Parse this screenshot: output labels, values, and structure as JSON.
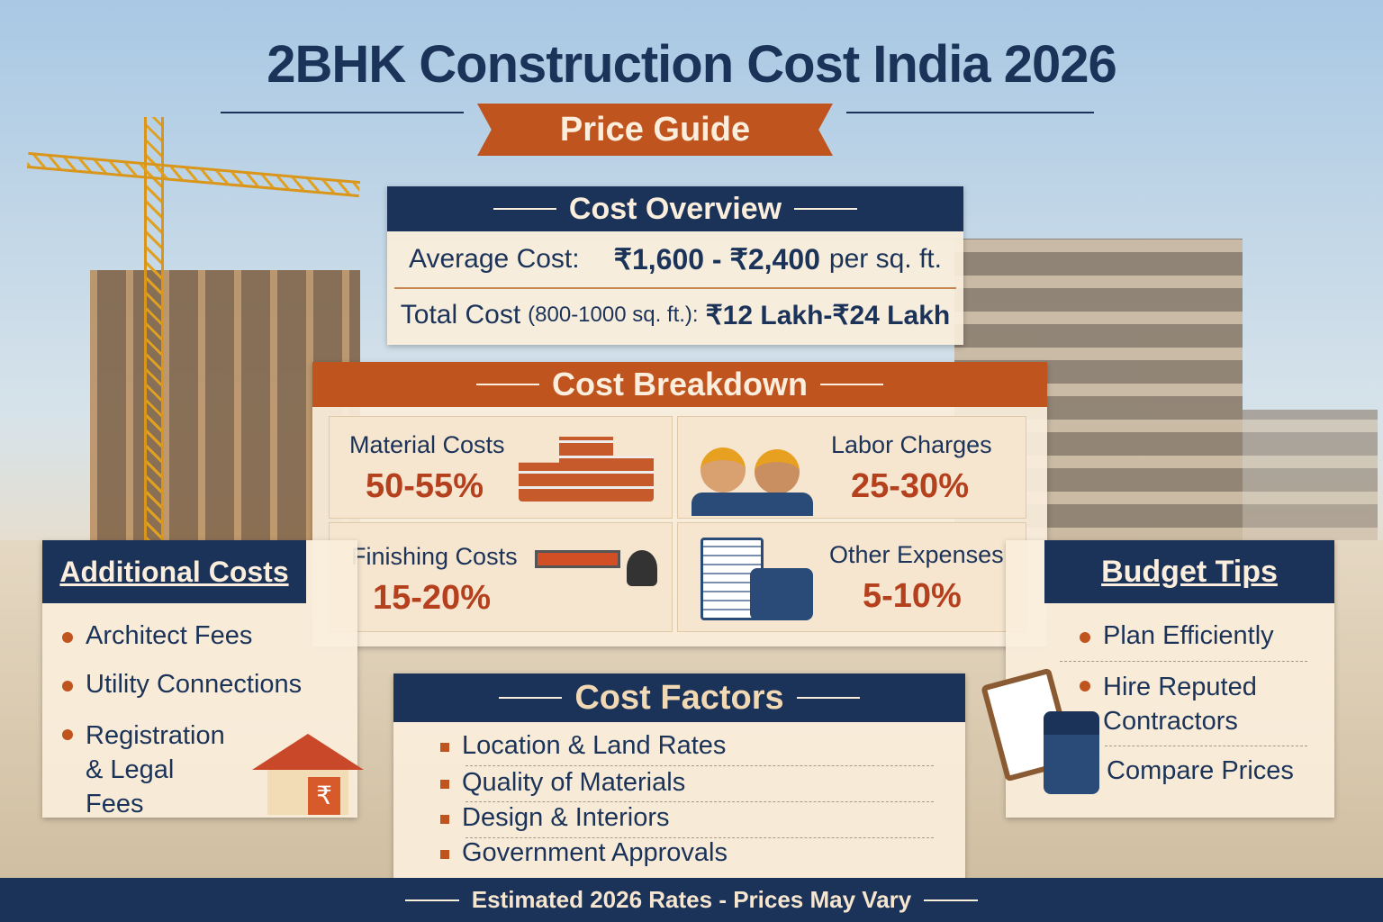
{
  "title": "2BHK Construction Cost India 2026",
  "subtitle": "Price Guide",
  "overview": {
    "header": "Cost Overview",
    "avg_label": "Average Cost:",
    "avg_value": "₹1,600 - ₹2,400",
    "avg_unit": "per sq. ft.",
    "total_label": "Total Cost",
    "total_range": "(800-1000 sq. ft.):",
    "total_value": "₹12 Lakh-₹24 Lakh"
  },
  "breakdown": {
    "header": "Cost Breakdown",
    "items": [
      {
        "label": "Material Costs",
        "pct": "50-55%",
        "icon": "bricks-icon"
      },
      {
        "label": "Labor Charges",
        "pct": "25-30%",
        "icon": "workers-icon"
      },
      {
        "label": "Finishing Costs",
        "pct": "15-20%",
        "icon": "paint-roller-icon"
      },
      {
        "label": "Other Expenses",
        "pct": "5-10%",
        "icon": "documents-icon"
      }
    ]
  },
  "additional": {
    "header": "Additional Costs",
    "items": [
      "Architect Fees",
      "Utility Connections",
      "Registration & Legal Fees"
    ]
  },
  "budget": {
    "header": "Budget Tips",
    "items": [
      "Plan Efficiently",
      "Hire Reputed Contractors",
      "Compare Prices"
    ]
  },
  "factors": {
    "header": "Cost Factors",
    "items": [
      "Location & Land Rates",
      "Quality of Materials",
      "Design & Interiors",
      "Government Approvals"
    ]
  },
  "footer": "Estimated 2026 Rates - Prices May Vary",
  "colors": {
    "navy": "#1b3358",
    "orange": "#c0541f",
    "cream": "#faeedc"
  }
}
